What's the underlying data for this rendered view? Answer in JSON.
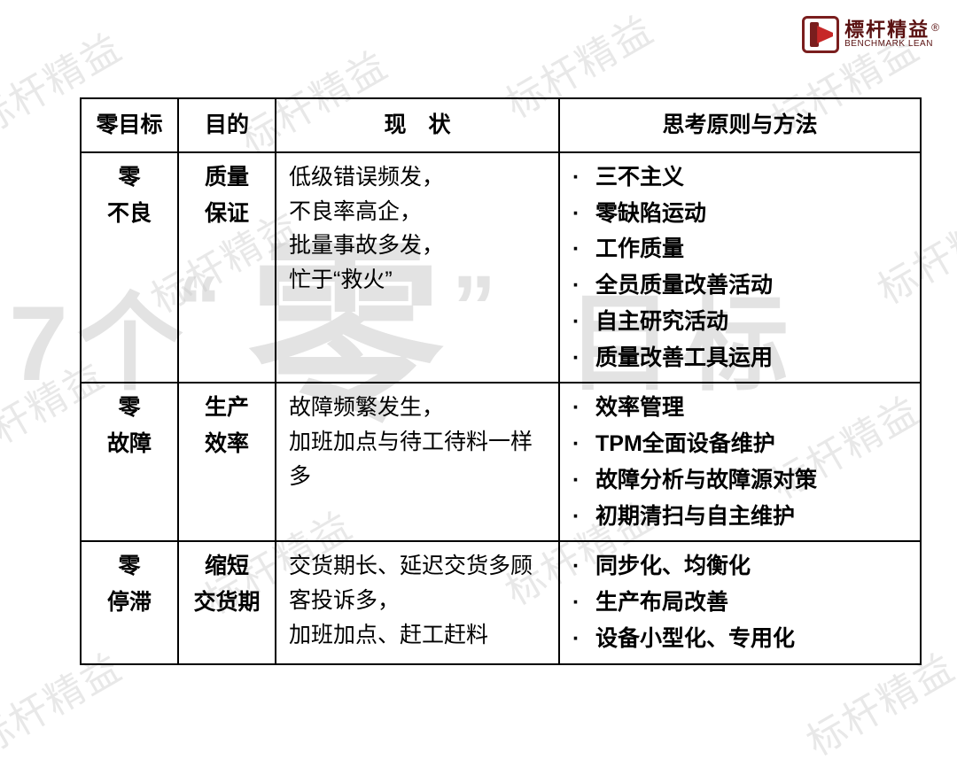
{
  "logo": {
    "cn": "標杆精益",
    "en": "BENCHMARK LEAN",
    "mark": "®"
  },
  "watermark_small": "标杆精益",
  "big_watermark_left": "7个",
  "big_watermark_quote_l": "“",
  "big_watermark_char": "零",
  "big_watermark_quote_r": "”",
  "big_watermark_right": "目标",
  "table": {
    "headers": [
      "零目标",
      "目的",
      "现　状",
      "思考原则与方法"
    ],
    "rows": [
      {
        "target": [
          "零",
          "不良"
        ],
        "purpose": [
          "质量",
          "保证"
        ],
        "status": "低级错误频发，\n不良率高企，\n批量事故多发，\n忙于“救火”",
        "methods": [
          "三不主义",
          "零缺陷运动",
          "工作质量",
          "全员质量改善活动",
          "自主研究活动",
          "质量改善工具运用"
        ]
      },
      {
        "target": [
          "零",
          "故障"
        ],
        "purpose": [
          "生产",
          "效率"
        ],
        "status": "故障频繁发生，\n加班加点与待工待料一样多",
        "methods": [
          "效率管理",
          "TPM全面设备维护",
          "故障分析与故障源对策",
          "初期清扫与自主维护"
        ]
      },
      {
        "target": [
          "零",
          "停滞"
        ],
        "purpose": [
          "缩短",
          "交货期"
        ],
        "status": "交货期长、延迟交货多顾客投诉多，\n加班加点、赶工赶料",
        "methods": [
          "同步化、均衡化",
          "生产布局改善",
          "设备小型化、专用化"
        ]
      }
    ]
  }
}
